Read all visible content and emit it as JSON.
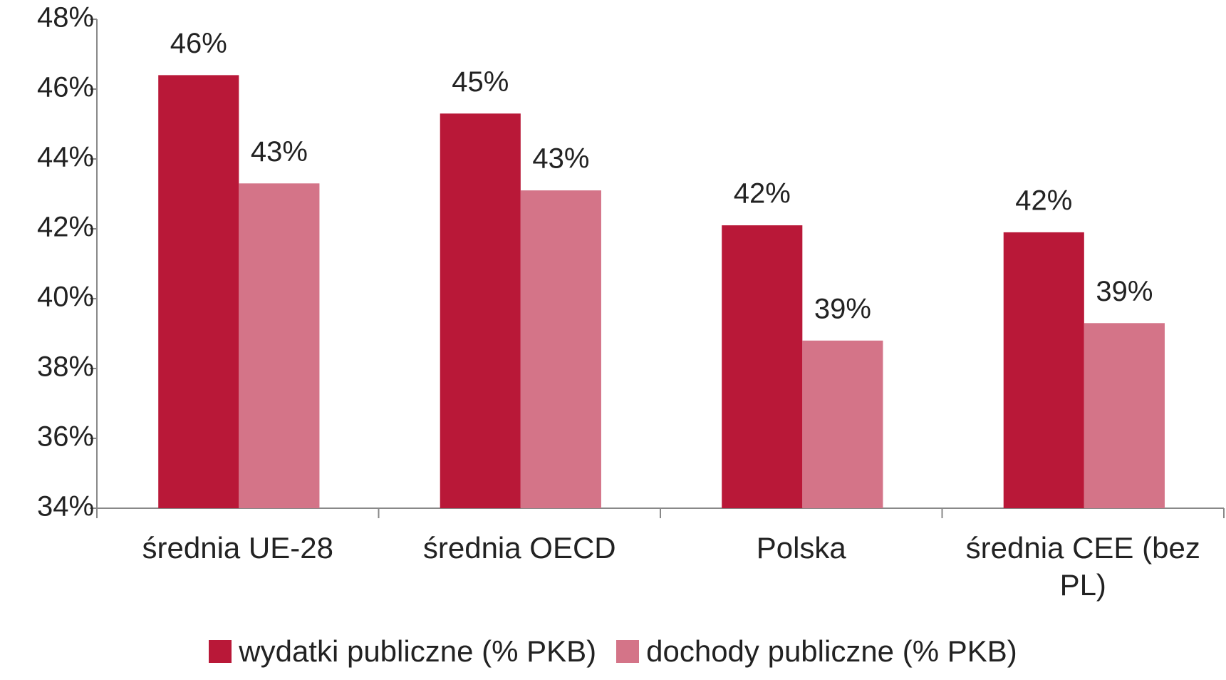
{
  "chart_data": {
    "type": "bar",
    "categories": [
      "średnia UE-28",
      "średnia OECD",
      "Polska",
      "średnia CEE (bez PL)"
    ],
    "series": [
      {
        "name": "wydatki publiczne (% PKB)",
        "color": "#b91838",
        "values": [
          46.4,
          45.3,
          42.1,
          41.9
        ],
        "value_labels": [
          "46%",
          "45%",
          "42%",
          "42%"
        ]
      },
      {
        "name": "dochody publiczne (% PKB)",
        "color": "#d47488",
        "values": [
          43.3,
          43.1,
          38.8,
          39.3
        ],
        "value_labels": [
          "43%",
          "43%",
          "39%",
          "39%"
        ]
      }
    ],
    "ylim": [
      34,
      48
    ],
    "yticks": [
      {
        "value": 34,
        "label": "34%"
      },
      {
        "value": 36,
        "label": "36%"
      },
      {
        "value": 38,
        "label": "38%"
      },
      {
        "value": 40,
        "label": "40%"
      },
      {
        "value": 42,
        "label": "42%"
      },
      {
        "value": 44,
        "label": "44%"
      },
      {
        "value": 46,
        "label": "46%"
      },
      {
        "value": 48,
        "label": "48%"
      }
    ],
    "legend": "bottom"
  }
}
